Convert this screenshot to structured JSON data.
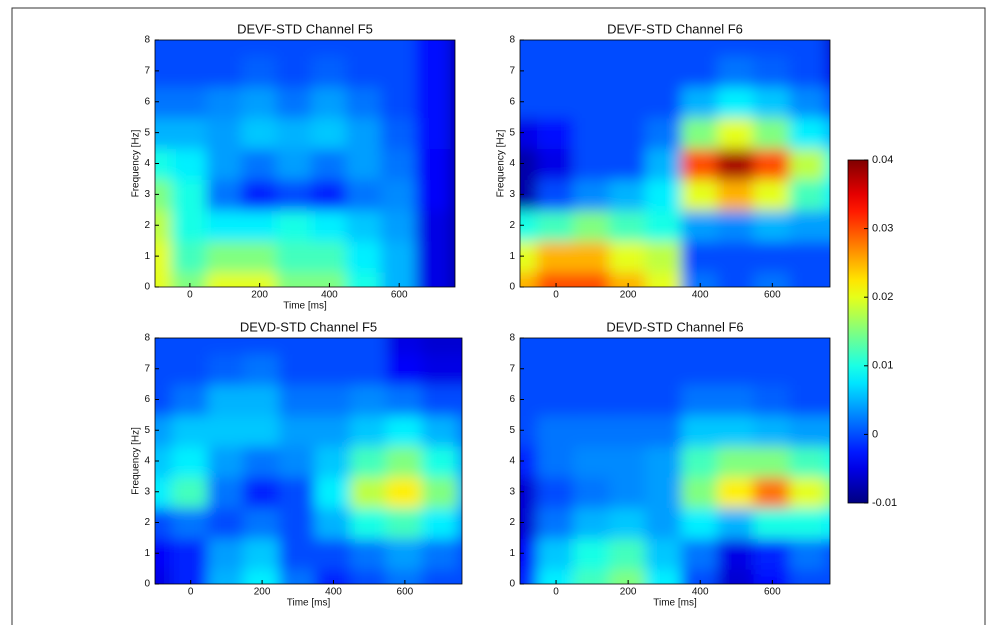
{
  "chart_data": [
    {
      "type": "heatmap",
      "title": "DEVF-STD Channel F5",
      "x_label": "Time [ms]",
      "y_label": "Frequency [Hz]",
      "x": [
        -100,
        0,
        100,
        200,
        300,
        400,
        500,
        600,
        700,
        800
      ],
      "y": [
        0,
        1,
        2,
        3,
        4,
        5,
        6,
        7,
        8
      ],
      "z": [
        [
          0.02,
          0.015,
          0.02,
          0.02,
          0.015,
          0.015,
          0.01,
          0.005,
          -0.005,
          -0.008
        ],
        [
          0.02,
          0.012,
          0.015,
          0.015,
          0.012,
          0.012,
          0.008,
          0.005,
          -0.005,
          -0.008
        ],
        [
          0.018,
          0.01,
          0.008,
          0.008,
          0.01,
          0.008,
          0.006,
          0.004,
          -0.005,
          -0.008
        ],
        [
          0.015,
          0.01,
          0.002,
          -0.002,
          0,
          -0.002,
          0.002,
          0.003,
          -0.004,
          -0.008
        ],
        [
          0.01,
          0.008,
          0.004,
          0.002,
          0.004,
          0.002,
          0.004,
          0.002,
          -0.004,
          -0.008
        ],
        [
          0.005,
          0.005,
          0.004,
          0.006,
          0.005,
          0.006,
          0.004,
          0.001,
          -0.003,
          -0.008
        ],
        [
          0.002,
          0.002,
          0.003,
          0.004,
          0.002,
          0.004,
          0.002,
          0,
          -0.003,
          -0.008
        ],
        [
          0,
          0,
          0,
          0.001,
          0,
          0.001,
          0,
          0,
          -0.003,
          -0.008
        ],
        [
          0,
          0,
          0,
          0,
          0,
          0,
          0,
          0,
          -0.003,
          -0.008
        ]
      ],
      "xlim": [
        -100,
        760
      ],
      "xticks": [
        0,
        200,
        400,
        600
      ],
      "ylim": [
        0,
        8
      ],
      "yticks": [
        0,
        1,
        2,
        3,
        4,
        5,
        6,
        7,
        8
      ]
    },
    {
      "type": "heatmap",
      "title": "DEVF-STD Channel F6",
      "y_label": "Frequency [Hz]",
      "x": [
        -100,
        0,
        100,
        200,
        300,
        400,
        500,
        600,
        700,
        800
      ],
      "y": [
        0,
        1,
        2,
        3,
        4,
        5,
        6,
        7,
        8
      ],
      "z": [
        [
          0.025,
          0.03,
          0.03,
          0.025,
          0.02,
          0.002,
          0,
          0.002,
          0,
          0
        ],
        [
          0.02,
          0.025,
          0.025,
          0.02,
          0.018,
          0,
          0,
          0,
          0,
          0
        ],
        [
          0.01,
          0.012,
          0.015,
          0.012,
          0.01,
          0.004,
          0.003,
          0.005,
          0.004,
          0.004
        ],
        [
          -0.008,
          0,
          0.003,
          0.005,
          0.008,
          0.02,
          0.025,
          0.02,
          0.012,
          0.008
        ],
        [
          -0.008,
          -0.005,
          0,
          0,
          0.005,
          0.03,
          0.038,
          0.03,
          0.018,
          0.01
        ],
        [
          -0.005,
          -0.003,
          0,
          0,
          0.002,
          0.015,
          0.02,
          0.015,
          0.008,
          0.005
        ],
        [
          0,
          0,
          0,
          0,
          0,
          0.005,
          0.008,
          0.006,
          0.003,
          0
        ],
        [
          0,
          0,
          0,
          0,
          0,
          0,
          0.002,
          0.001,
          0,
          -0.005
        ],
        [
          0,
          0,
          0,
          0,
          0,
          0,
          0,
          0,
          0,
          -0.006
        ]
      ],
      "xlim": [
        -100,
        760
      ],
      "xticks": [
        0,
        200,
        400,
        600
      ],
      "ylim": [
        0,
        8
      ],
      "yticks": [
        0,
        1,
        2,
        3,
        4,
        5,
        6,
        7,
        8
      ]
    },
    {
      "type": "heatmap",
      "title": "DEVD-STD Channel F5",
      "x_label": "Time [ms]",
      "y_label": "Frequency [Hz]",
      "x": [
        -100,
        0,
        100,
        200,
        300,
        400,
        500,
        600,
        700,
        800
      ],
      "y": [
        0,
        1,
        2,
        3,
        4,
        5,
        6,
        7,
        8
      ],
      "z": [
        [
          -0.005,
          -0.002,
          0.005,
          0.008,
          0.002,
          -0.002,
          0,
          0.002,
          0,
          0
        ],
        [
          -0.004,
          -0.002,
          0.004,
          0.006,
          0,
          0,
          0.002,
          0.004,
          0.002,
          0
        ],
        [
          0,
          0.002,
          0,
          0.002,
          0,
          0.005,
          0.01,
          0.012,
          0.008,
          0.003
        ],
        [
          0.008,
          0.012,
          0.002,
          -0.002,
          0,
          0.008,
          0.018,
          0.022,
          0.015,
          0.005
        ],
        [
          0.006,
          0.008,
          0.004,
          0.002,
          0.003,
          0.006,
          0.012,
          0.015,
          0.01,
          0.004
        ],
        [
          0.004,
          0.006,
          0.006,
          0.006,
          0.004,
          0.004,
          0.006,
          0.008,
          0.005,
          0.002
        ],
        [
          0,
          0.002,
          0.005,
          0.005,
          0.002,
          0.002,
          0.003,
          0.002,
          0,
          0
        ],
        [
          0,
          0,
          0.001,
          0.002,
          0,
          0,
          0,
          -0.004,
          -0.005,
          -0.005
        ],
        [
          0,
          0,
          0,
          0,
          0,
          0,
          0,
          -0.005,
          -0.006,
          -0.006
        ]
      ],
      "xlim": [
        -100,
        760
      ],
      "xticks": [
        0,
        200,
        400,
        600
      ],
      "ylim": [
        0,
        8
      ],
      "yticks": [
        0,
        1,
        2,
        3,
        4,
        5,
        6,
        7,
        8
      ]
    },
    {
      "type": "heatmap",
      "title": "DEVD-STD Channel F6",
      "x_label": "Time [ms]",
      "x": [
        -100,
        0,
        100,
        200,
        300,
        400,
        500,
        600,
        700,
        800
      ],
      "y": [
        0,
        1,
        2,
        3,
        4,
        5,
        6,
        7,
        8
      ],
      "z": [
        [
          -0.002,
          0.008,
          0.012,
          0.015,
          0.008,
          0,
          -0.006,
          -0.003,
          0,
          0
        ],
        [
          -0.004,
          0.006,
          0.01,
          0.012,
          0.006,
          0.002,
          -0.005,
          -0.002,
          0.002,
          0
        ],
        [
          -0.006,
          0.002,
          0.005,
          0.006,
          0.004,
          0.008,
          0.005,
          0.01,
          0.01,
          0.008
        ],
        [
          -0.006,
          0,
          0.002,
          0.003,
          0.004,
          0.015,
          0.022,
          0.028,
          0.02,
          0.015
        ],
        [
          -0.002,
          0.002,
          0.003,
          0.003,
          0.004,
          0.012,
          0.015,
          0.015,
          0.012,
          0.01
        ],
        [
          0,
          0.002,
          0.002,
          0.002,
          0.002,
          0.006,
          0.006,
          0.005,
          0.004,
          0.004
        ],
        [
          0,
          0,
          0,
          0,
          0,
          0.002,
          0.002,
          0.001,
          0,
          0
        ],
        [
          0,
          0,
          0,
          0,
          0,
          0,
          0,
          0,
          0,
          0
        ],
        [
          0,
          0,
          0,
          0,
          0,
          0,
          0,
          0,
          0,
          0
        ]
      ],
      "xlim": [
        -100,
        760
      ],
      "xticks": [
        0,
        200,
        400,
        600
      ],
      "ylim": [
        0,
        8
      ],
      "yticks": [
        0,
        1,
        2,
        3,
        4,
        5,
        6,
        7,
        8
      ]
    }
  ],
  "colorbar": {
    "colormap": "jet",
    "clim": [
      -0.01,
      0.04
    ],
    "ticks": [
      -0.01,
      0,
      0.01,
      0.02,
      0.03,
      0.04
    ]
  }
}
